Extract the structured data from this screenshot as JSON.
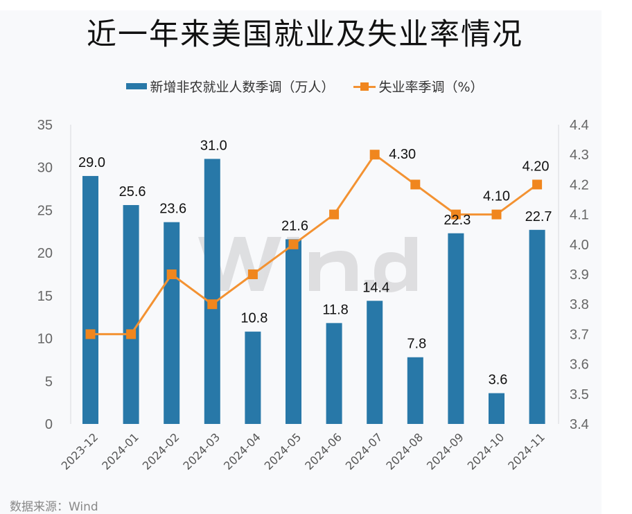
{
  "chart_data": {
    "type": "bar+line",
    "title": "近一年来美国就业及失业率情况",
    "categories": [
      "2023-12",
      "2024-01",
      "2024-02",
      "2024-03",
      "2024-04",
      "2024-05",
      "2024-06",
      "2024-07",
      "2024-08",
      "2024-09",
      "2024-10",
      "2024-11"
    ],
    "series": [
      {
        "name": "新增非农就业人数季调（万人）",
        "type": "bar",
        "axis": "left",
        "color": "#2878a8",
        "values": [
          29.0,
          25.6,
          23.6,
          31.0,
          10.8,
          21.6,
          11.8,
          14.4,
          7.8,
          22.3,
          3.6,
          22.7
        ],
        "data_labels": [
          "29.0",
          "25.6",
          "23.6",
          "31.0",
          "10.8",
          "21.6",
          "11.8",
          "14.4",
          "7.8",
          "22.3",
          "3.6",
          "22.7"
        ]
      },
      {
        "name": "失业率季调（%）",
        "type": "line",
        "axis": "right",
        "color": "#f39232",
        "marker": "square",
        "values": [
          3.7,
          3.7,
          3.9,
          3.8,
          3.9,
          4.0,
          4.1,
          4.3,
          4.2,
          4.1,
          4.1,
          4.2
        ],
        "data_labels": {
          "7": "4.30",
          "10": "4.10",
          "11": "4.20"
        }
      }
    ],
    "left_axis": {
      "ylim": [
        0,
        35
      ],
      "ticks": [
        "0",
        "5",
        "10",
        "15",
        "20",
        "25",
        "30",
        "35"
      ]
    },
    "right_axis": {
      "ylim": [
        3.4,
        4.4
      ],
      "ticks": [
        "3.4",
        "3.5",
        "3.6",
        "3.7",
        "3.8",
        "3.9",
        "4.0",
        "4.1",
        "4.2",
        "4.3",
        "4.4"
      ]
    },
    "xlabel": "",
    "ylabel": "",
    "grid": false,
    "legend_position": "top-center",
    "watermark": "Wind"
  },
  "source_note": "数据来源：Wind"
}
